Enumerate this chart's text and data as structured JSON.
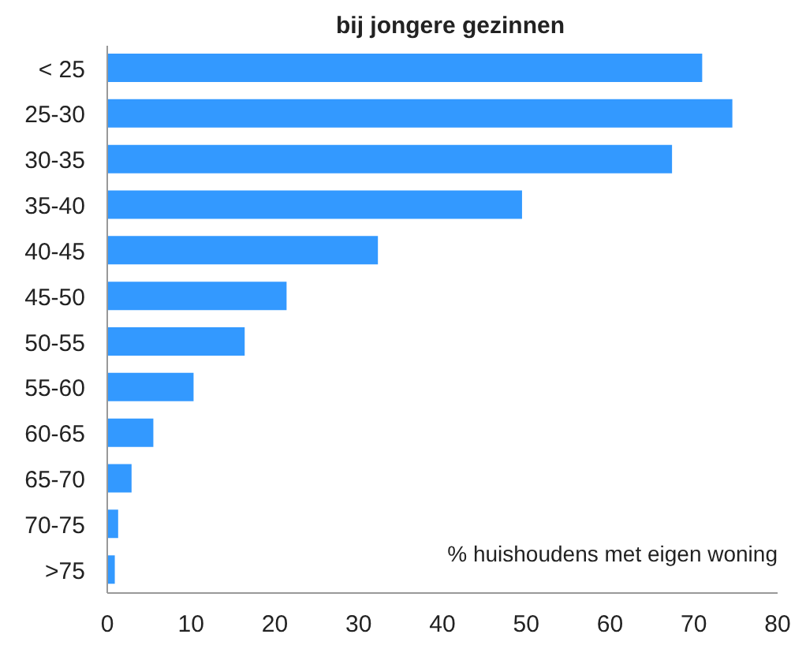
{
  "chart_data": {
    "type": "bar",
    "orientation": "horizontal",
    "title": "bij jongere gezinnen",
    "xlabel": "% huishoudens met eigen woning",
    "categories": [
      "< 25",
      "25-30",
      "30-35",
      "35-40",
      "40-45",
      "45-50",
      "50-55",
      "55-60",
      "60-65",
      "65-70",
      "70-75",
      ">75"
    ],
    "values": [
      71,
      74.6,
      67.4,
      49.5,
      32.3,
      21.4,
      16.4,
      10.3,
      5.5,
      2.9,
      1.3,
      0.9
    ],
    "color": "#3399ff",
    "xlim": [
      0,
      80
    ],
    "xticks": [
      0,
      10,
      20,
      30,
      40,
      50,
      60,
      70,
      80
    ],
    "grid": false
  }
}
